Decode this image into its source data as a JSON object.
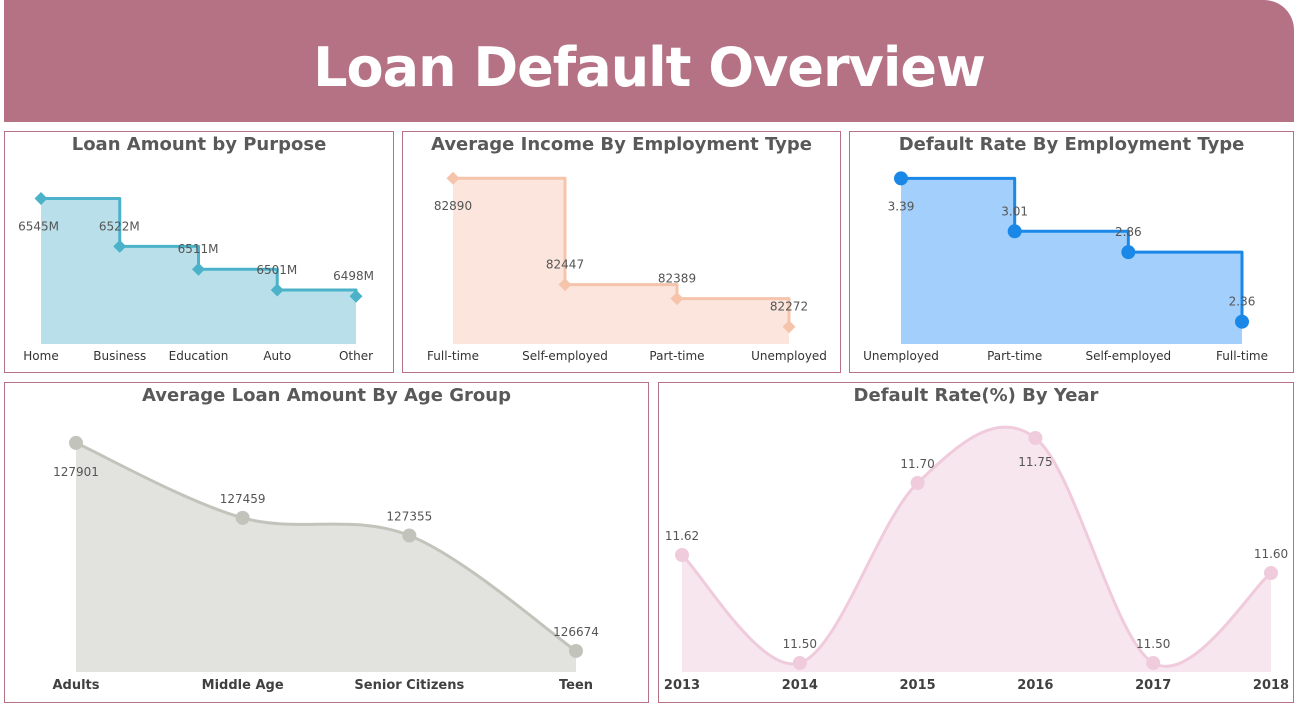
{
  "header": {
    "title": "Loan Default Overview"
  },
  "chart_data": [
    {
      "id": "purpose",
      "type": "area",
      "interpolation": "step",
      "title": "Loan Amount by Purpose",
      "categories": [
        "Home",
        "Business",
        "Education",
        "Auto",
        "Other"
      ],
      "values": [
        6545,
        6522,
        6511,
        6501,
        6498
      ],
      "value_labels": [
        "6545M",
        "6522M",
        "6511M",
        "6501M",
        "6498M"
      ],
      "ylim": [
        6475,
        6552
      ],
      "marker": "diamond",
      "colors": {
        "line": "#4cb2c9",
        "fill": "#b9e0ea"
      }
    },
    {
      "id": "income",
      "type": "area",
      "interpolation": "step",
      "title": "Average Income By Employment Type",
      "categories": [
        "Full-time",
        "Self-employed",
        "Part-time",
        "Unemployed"
      ],
      "values": [
        82890,
        82447,
        82389,
        82272
      ],
      "value_labels": [
        "82890",
        "82447",
        "82389",
        "82272"
      ],
      "ylim": [
        82200,
        82895
      ],
      "marker": "diamond",
      "colors": {
        "line": "#f5c4ab",
        "fill": "#fbe5dd"
      }
    },
    {
      "id": "default_emp",
      "type": "area",
      "interpolation": "step",
      "title": "Default Rate By Employment Type",
      "categories": [
        "Unemployed",
        "Part-time",
        "Self-employed",
        "Full-time"
      ],
      "values": [
        3.39,
        3.01,
        2.86,
        2.36
      ],
      "value_labels": [
        "3.39",
        "3.01",
        "2.86",
        "2.36"
      ],
      "ylim": [
        2.2,
        3.4
      ],
      "marker": "circle",
      "colors": {
        "line": "#1b88e8",
        "fill": "#a2cffb"
      }
    },
    {
      "id": "age",
      "type": "area",
      "interpolation": "smooth",
      "title": "Average Loan Amount By Age Group",
      "categories": [
        "Adults",
        "Middle Age",
        "Senior Citizens",
        "Teen"
      ],
      "values": [
        127901,
        127459,
        127355,
        126674
      ],
      "value_labels": [
        "127901",
        "127459",
        "127355",
        "126674"
      ],
      "ylim": [
        126550,
        127930
      ],
      "marker": "circle",
      "colors": {
        "line": "#c2c4bc",
        "fill": "#e2e3df"
      }
    },
    {
      "id": "year",
      "type": "area",
      "interpolation": "smooth",
      "title": "Default Rate(%) By Year",
      "categories": [
        "2013",
        "2014",
        "2015",
        "2016",
        "2017",
        "2018"
      ],
      "values": [
        11.62,
        11.5,
        11.7,
        11.75,
        11.5,
        11.6
      ],
      "value_labels": [
        "11.62",
        "11.50",
        "11.70",
        "11.75",
        "11.50",
        "11.60"
      ],
      "ylim": [
        11.49,
        11.76
      ],
      "marker": "circle",
      "colors": {
        "line": "#efcbdc",
        "fill": "#f8e6ef"
      }
    }
  ]
}
